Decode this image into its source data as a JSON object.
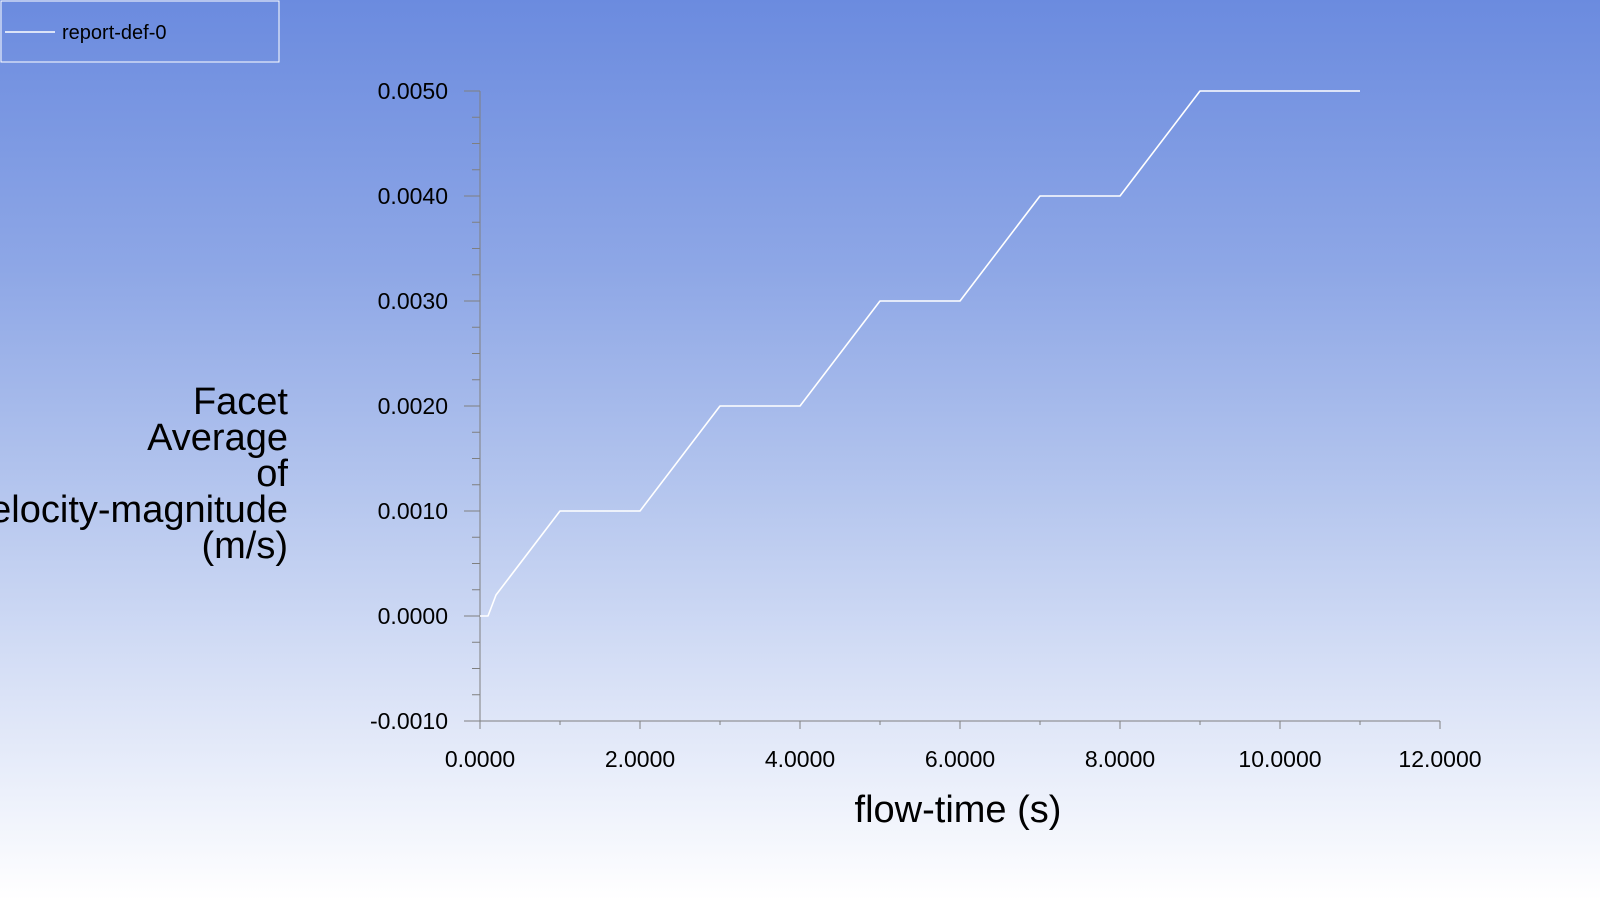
{
  "chart_data": {
    "type": "line",
    "title": "",
    "xlabel": "flow-time (s)",
    "ylabel_lines": [
      "Facet",
      "Average",
      "of",
      "Velocity-magnitude",
      "(m/s)"
    ],
    "xlim": [
      0,
      12
    ],
    "ylim": [
      -0.001,
      0.005
    ],
    "x_ticks": [
      0,
      2,
      4,
      6,
      8,
      10,
      12
    ],
    "x_tick_labels": [
      "0.0000",
      "2.0000",
      "4.0000",
      "6.0000",
      "8.0000",
      "10.0000",
      "12.0000"
    ],
    "y_ticks": [
      -0.001,
      0,
      0.001,
      0.002,
      0.003,
      0.004,
      0.005
    ],
    "y_tick_labels": [
      "-0.0010",
      "0.0000",
      "0.0010",
      "0.0020",
      "0.0030",
      "0.0040",
      "0.0050"
    ],
    "x_minor_step": 1,
    "y_minor_step": 0.00025,
    "grid": false,
    "legend_position": "top-left",
    "line_color": "#ffffff",
    "axis_color": "#7f7f7f",
    "series": [
      {
        "name": "report-def-0",
        "x": [
          0,
          0.1,
          0.2,
          1,
          2,
          3,
          4,
          5,
          6,
          7,
          8,
          9,
          10,
          11
        ],
        "y": [
          0,
          0,
          0.0002,
          0.001,
          0.001,
          0.002,
          0.002,
          0.003,
          0.003,
          0.004,
          0.004,
          0.005,
          0.005,
          0.005
        ]
      }
    ]
  }
}
